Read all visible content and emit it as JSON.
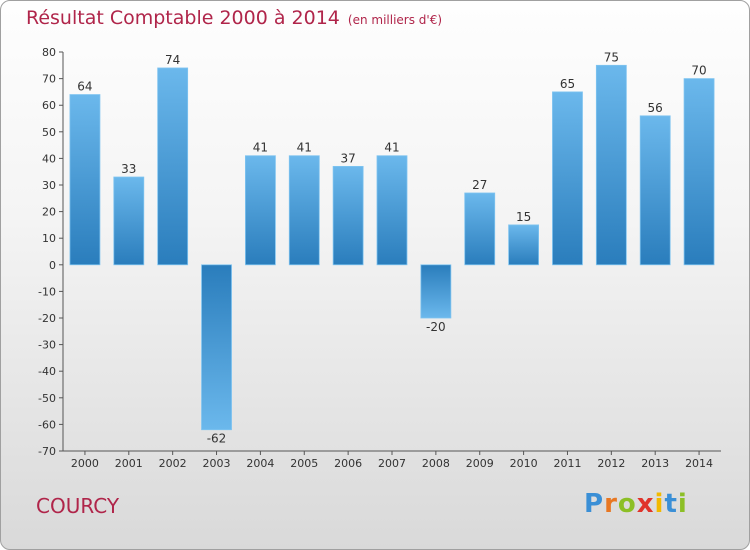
{
  "title": "Résultat Comptable 2000 à 2014",
  "subtitle": "(en milliers d'€)",
  "commune": "COURCY",
  "logo": "Proxiti",
  "colors": {
    "title": "#b0254a",
    "bar_light": "#6bb8ec",
    "bar_dark": "#2a7dbc"
  },
  "chart_data": {
    "type": "bar",
    "categories": [
      "2000",
      "2001",
      "2002",
      "2003",
      "2004",
      "2005",
      "2006",
      "2007",
      "2008",
      "2009",
      "2010",
      "2011",
      "2012",
      "2013",
      "2014"
    ],
    "values": [
      64,
      33,
      74,
      -62,
      41,
      41,
      37,
      41,
      -20,
      27,
      15,
      65,
      75,
      56,
      70
    ],
    "title": "Résultat Comptable 2000 à 2014",
    "ylim": [
      -70,
      80
    ],
    "yticks": [
      80,
      70,
      60,
      50,
      40,
      30,
      20,
      10,
      0,
      -10,
      -20,
      -30,
      -40,
      -50,
      -60,
      -70
    ],
    "grid": false
  }
}
